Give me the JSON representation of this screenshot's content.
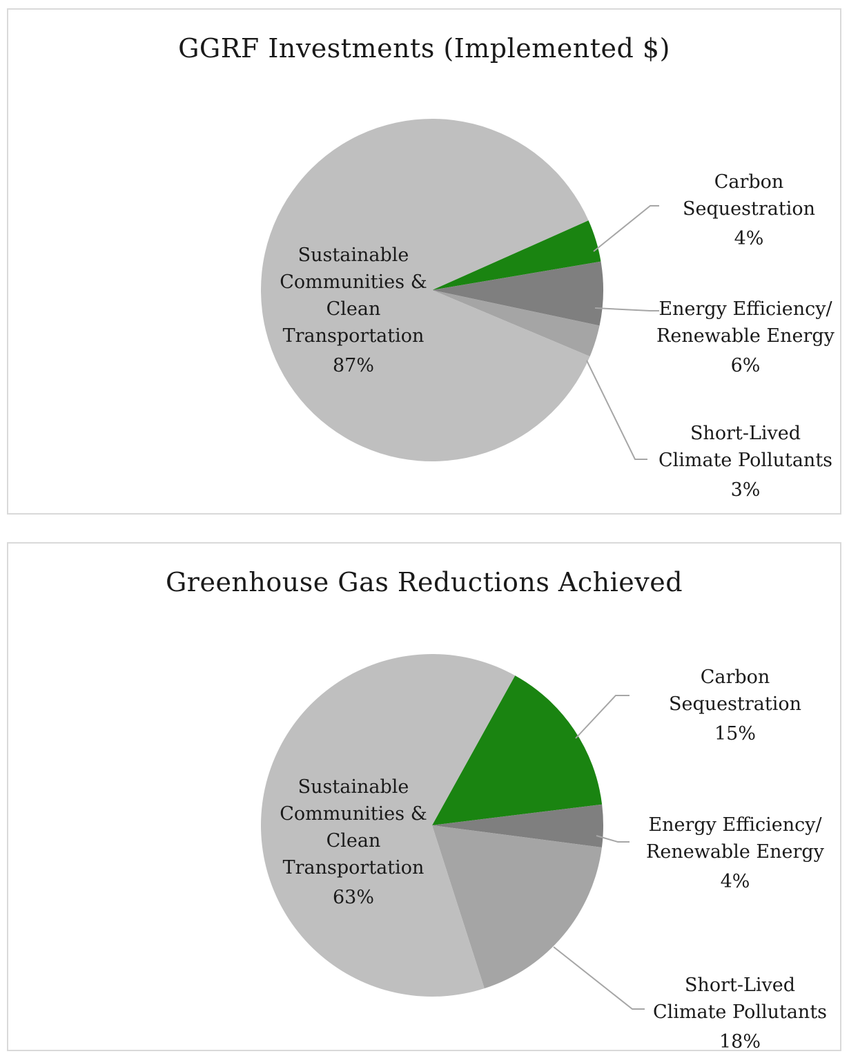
{
  "chart_data": [
    {
      "type": "pie",
      "title": "GGRF Investments (Implemented $)",
      "slices": [
        {
          "label": [
            "Sustainable",
            "Communities &",
            "Clean",
            "Transportation"
          ],
          "pct_label": "87%",
          "value": 87,
          "color": "#bfbfbf"
        },
        {
          "label": [
            "Carbon",
            "Sequestration"
          ],
          "pct_label": "4%",
          "value": 4,
          "color": "#1a8411"
        },
        {
          "label": [
            "Energy Efficiency/",
            "Renewable Energy"
          ],
          "pct_label": "6%",
          "value": 6,
          "color": "#7f7f7f"
        },
        {
          "label": [
            "Short-Lived",
            "Climate Pollutants"
          ],
          "pct_label": "3%",
          "value": 3,
          "color": "#a5a5a5"
        }
      ]
    },
    {
      "type": "pie",
      "title": "Greenhouse Gas Reductions Achieved",
      "slices": [
        {
          "label": [
            "Sustainable",
            "Communities &",
            "Clean",
            "Transportation"
          ],
          "pct_label": "63%",
          "value": 63,
          "color": "#bfbfbf"
        },
        {
          "label": [
            "Carbon",
            "Sequestration"
          ],
          "pct_label": "15%",
          "value": 15,
          "color": "#1a8411"
        },
        {
          "label": [
            "Energy Efficiency/",
            "Renewable Energy"
          ],
          "pct_label": "4%",
          "value": 4,
          "color": "#7f7f7f"
        },
        {
          "label": [
            "Short-Lived",
            "Climate Pollutants"
          ],
          "pct_label": "18%",
          "value": 18,
          "color": "#a5a5a5"
        }
      ]
    }
  ]
}
